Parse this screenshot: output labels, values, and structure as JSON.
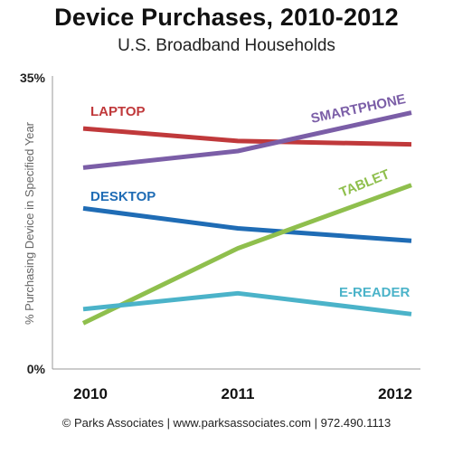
{
  "chart_data": {
    "type": "line",
    "title": "Device Purchases, 2010-2012",
    "subtitle": "U.S. Broadband Households",
    "xlabel": "",
    "ylabel": "% Purchasing Device in Specified Year",
    "categories": [
      "2010",
      "2011",
      "2012"
    ],
    "ylim": [
      0,
      35
    ],
    "y_tick_labels": [
      "35%",
      "0%"
    ],
    "grid": false,
    "legend": "inline labels at line ends",
    "series": [
      {
        "name": "LAPTOP",
        "values": [
          28.9,
          27.4,
          27.0
        ],
        "color": "#c0393b"
      },
      {
        "name": "SMARTPHONE",
        "values": [
          24.2,
          26.2,
          30.8
        ],
        "color": "#7b5ea7"
      },
      {
        "name": "DESKTOP",
        "values": [
          19.3,
          16.9,
          15.4
        ],
        "color": "#1f6cb5"
      },
      {
        "name": "TABLET",
        "values": [
          5.5,
          14.5,
          22.1
        ],
        "color": "#8fbf4d"
      },
      {
        "name": "E-READER",
        "values": [
          7.2,
          9.1,
          6.6
        ],
        "color": "#4bb3c9"
      }
    ]
  },
  "footer": "© Parks Associates | www.parksassociates.com | 972.490.1113"
}
